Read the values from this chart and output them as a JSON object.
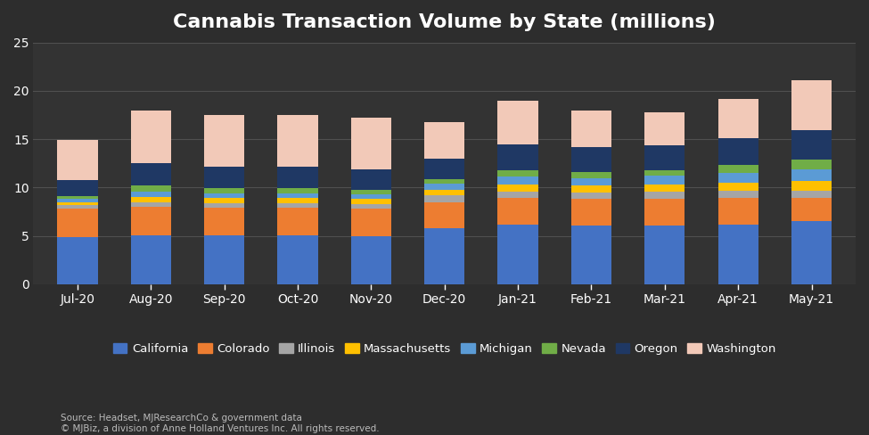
{
  "title": "Cannabis Transaction Volume by State (millions)",
  "months": [
    "Jul-20",
    "Aug-20",
    "Sep-20",
    "Oct-20",
    "Nov-20",
    "Dec-20",
    "Jan-21",
    "Feb-21",
    "Mar-21",
    "Apr-21",
    "May-21"
  ],
  "states": [
    "California",
    "Colorado",
    "Illinois",
    "Massachusetts",
    "Michigan",
    "Nevada",
    "Oregon",
    "Washington"
  ],
  "colors": [
    "#4472C4",
    "#ED7D31",
    "#A5A5A5",
    "#FFC000",
    "#5B9BD5",
    "#70AD47",
    "#1F3864",
    "#F2C9B8"
  ],
  "values": {
    "California": [
      4.9,
      5.1,
      5.1,
      5.1,
      5.0,
      5.8,
      6.2,
      6.1,
      6.1,
      6.2,
      6.5
    ],
    "Colorado": [
      2.9,
      2.9,
      2.8,
      2.8,
      2.8,
      2.7,
      2.7,
      2.7,
      2.7,
      2.7,
      2.4
    ],
    "Illinois": [
      0.4,
      0.5,
      0.5,
      0.5,
      0.5,
      0.7,
      0.7,
      0.7,
      0.8,
      0.8,
      0.8
    ],
    "Massachusetts": [
      0.3,
      0.5,
      0.5,
      0.5,
      0.5,
      0.6,
      0.7,
      0.7,
      0.7,
      0.8,
      1.0
    ],
    "Michigan": [
      0.3,
      0.6,
      0.5,
      0.5,
      0.5,
      0.6,
      0.8,
      0.8,
      0.9,
      1.0,
      1.2
    ],
    "Nevada": [
      0.3,
      0.6,
      0.5,
      0.5,
      0.5,
      0.5,
      0.7,
      0.6,
      0.6,
      0.8,
      1.0
    ],
    "Oregon": [
      1.7,
      2.3,
      2.3,
      2.3,
      2.1,
      2.1,
      2.7,
      2.6,
      2.6,
      2.8,
      3.0
    ],
    "Washington": [
      4.1,
      5.5,
      5.3,
      5.3,
      5.3,
      3.8,
      4.5,
      3.8,
      3.4,
      4.1,
      5.2
    ]
  },
  "ylim": [
    0,
    25
  ],
  "yticks": [
    0,
    5,
    10,
    15,
    20,
    25
  ],
  "source_text": "Source: Headset, MJResearchCo & government data\n© MJBiz, a division of Anne Holland Ventures Inc. All rights reserved.",
  "background_color": "#2d2d2d",
  "plot_bg_color": "#333333",
  "text_color": "#ffffff",
  "grid_color": "#505050"
}
